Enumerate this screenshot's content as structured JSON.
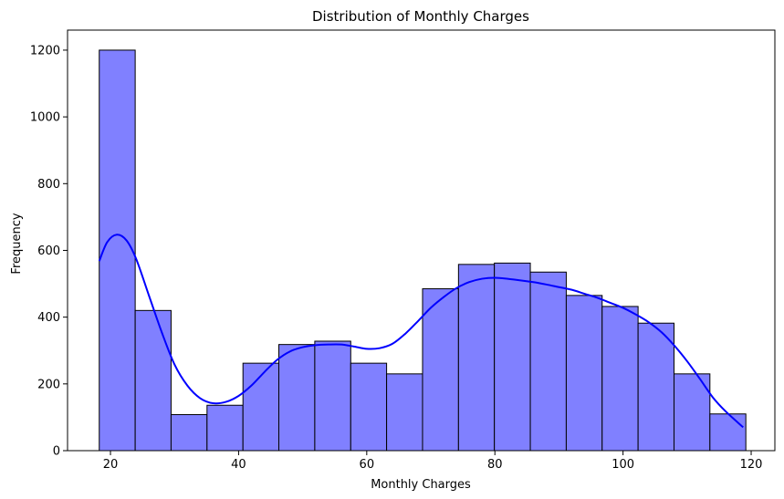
{
  "chart_data": {
    "type": "bar",
    "subtype": "histogram-with-kde",
    "title": "Distribution of Monthly Charges",
    "xlabel": "Monthly Charges",
    "ylabel": "Frequency",
    "xlim": [
      13.3,
      123.7
    ],
    "ylim": [
      0,
      1260
    ],
    "xticks": [
      20,
      40,
      60,
      80,
      100,
      120
    ],
    "yticks": [
      0,
      200,
      400,
      600,
      800,
      1000,
      1200
    ],
    "grid": false,
    "bins": {
      "edges": [
        18.25,
        23.86,
        29.46,
        35.07,
        40.68,
        46.28,
        51.89,
        57.5,
        63.1,
        68.71,
        74.32,
        79.92,
        85.53,
        91.14,
        96.74,
        102.35,
        107.96,
        113.56,
        119.17
      ],
      "counts": [
        1200,
        420,
        108,
        136,
        262,
        318,
        328,
        262,
        230,
        485,
        558,
        562,
        535,
        465,
        432,
        382,
        230,
        110
      ]
    },
    "kde": {
      "x": [
        18.25,
        19.5,
        21,
        22.5,
        24,
        26,
        28,
        30,
        32,
        34,
        36,
        38,
        40,
        42,
        44,
        46,
        48,
        50,
        52,
        54,
        56,
        58,
        60,
        62,
        64,
        66,
        68,
        70,
        72,
        74,
        76,
        78,
        80,
        82,
        84,
        86,
        88,
        90,
        92,
        94,
        96,
        98,
        100,
        102,
        104,
        106,
        108,
        110,
        112,
        114,
        116,
        118.75
      ],
      "y": [
        568,
        625,
        647,
        630,
        575,
        465,
        355,
        258,
        195,
        157,
        142,
        146,
        164,
        195,
        235,
        272,
        297,
        310,
        316,
        318,
        318,
        312,
        305,
        307,
        320,
        350,
        388,
        428,
        460,
        487,
        505,
        515,
        518,
        515,
        510,
        505,
        498,
        490,
        482,
        470,
        458,
        443,
        428,
        408,
        385,
        355,
        315,
        268,
        215,
        160,
        118,
        70
      ]
    },
    "colors": {
      "bar_fill": "#8080ff",
      "bar_edge": "#000000",
      "kde_line": "#0000ff"
    }
  }
}
